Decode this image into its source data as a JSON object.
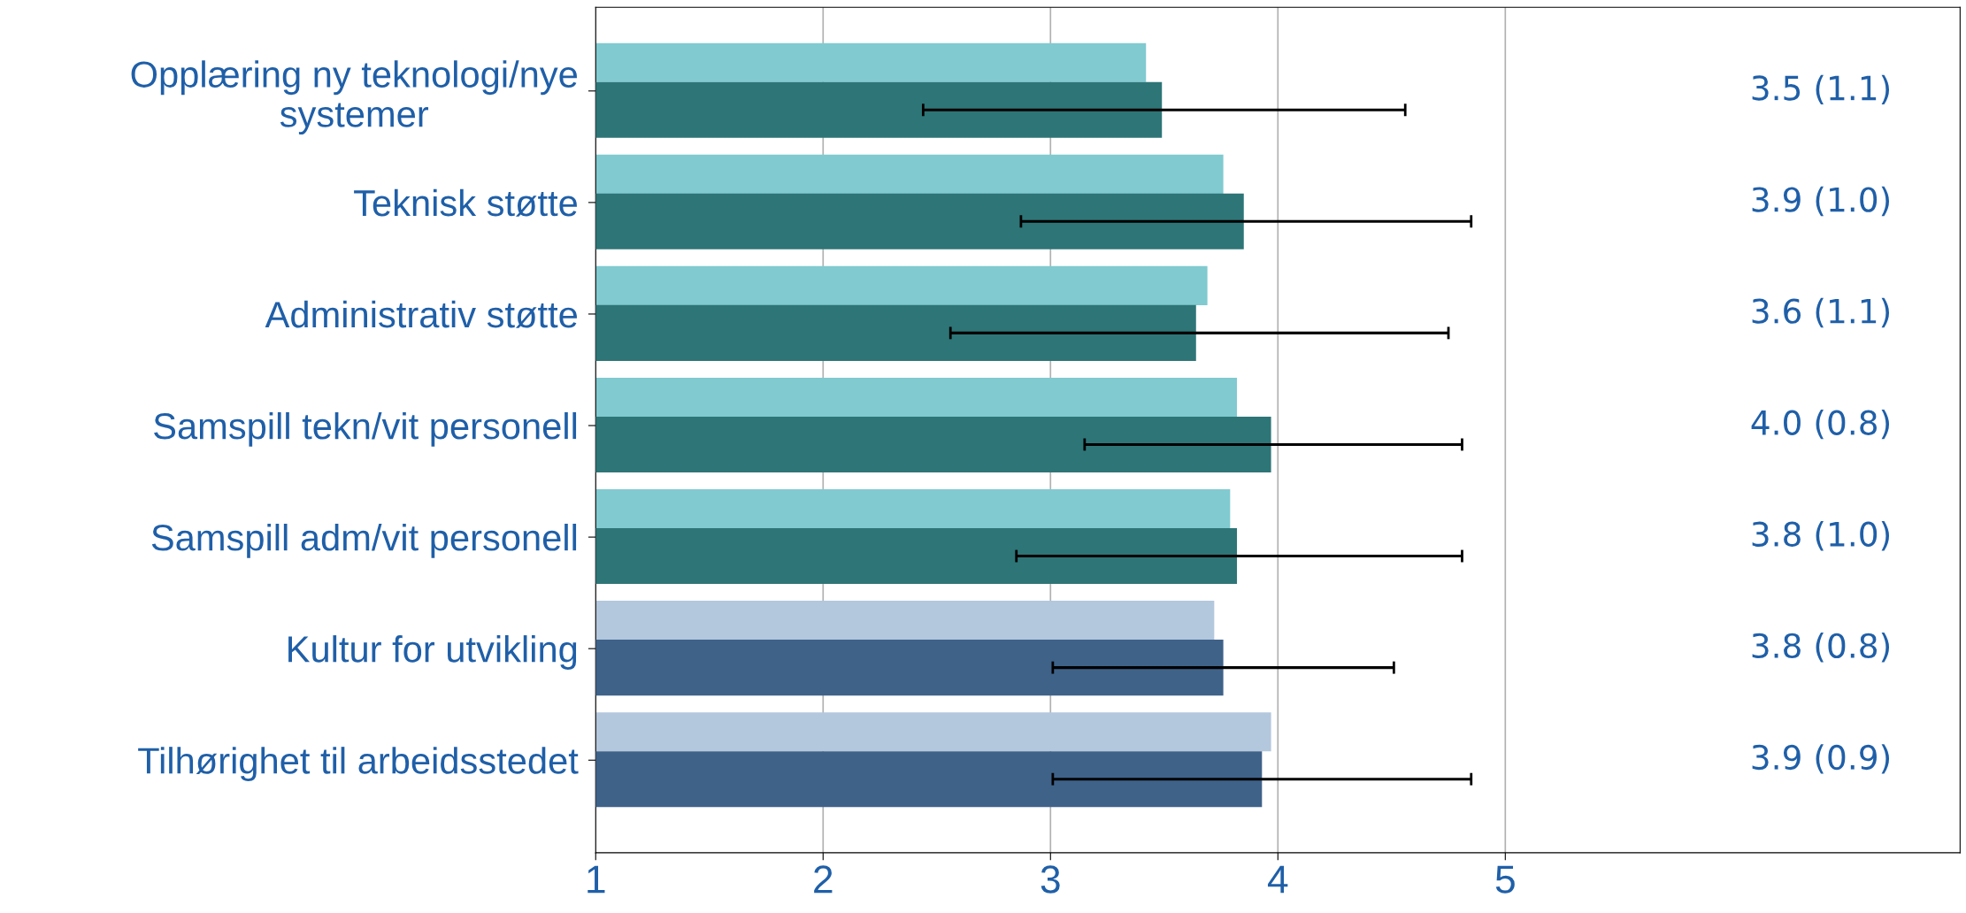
{
  "chart_data": {
    "type": "bar",
    "orientation": "horizontal",
    "categories": [
      "Opplæring ny teknologi/nye\nsystemer",
      "Teknisk støtte",
      "Administrativ støtte",
      "Samspill tekn/vit personell",
      "Samspill adm/vit personell",
      "Kultur for utvikling",
      "Tilhørighet til arbeidsstedet"
    ],
    "series": [
      {
        "colors": [
          "#80cad0",
          "#80cad0",
          "#80cad0",
          "#80cad0",
          "#80cad0",
          "#b3c7dd",
          "#b3c7dd"
        ],
        "values": [
          3.42,
          3.76,
          3.69,
          3.82,
          3.79,
          3.72,
          3.97
        ]
      },
      {
        "colors": [
          "#2e7577",
          "#2e7577",
          "#2e7577",
          "#2e7577",
          "#2e7577",
          "#3f6289",
          "#3f6289"
        ],
        "values": [
          3.49,
          3.85,
          3.64,
          3.97,
          3.82,
          3.76,
          3.93
        ],
        "errors": [
          [
            2.44,
            4.56
          ],
          [
            2.87,
            4.85
          ],
          [
            2.56,
            4.75
          ],
          [
            3.15,
            4.81
          ],
          [
            2.85,
            4.81
          ],
          [
            3.01,
            4.51
          ],
          [
            3.01,
            4.85
          ]
        ],
        "value_labels": [
          "3.5 (1.1)",
          "3.9 (1.0)",
          "3.6 (1.1)",
          "4.0 (0.8)",
          "3.8 (1.0)",
          "3.8 (0.8)",
          "3.9 (0.9)"
        ]
      }
    ],
    "xlim": [
      1,
      7
    ],
    "xticks": [
      1,
      2,
      3,
      4,
      5
    ],
    "grid": "x",
    "legend": false
  }
}
